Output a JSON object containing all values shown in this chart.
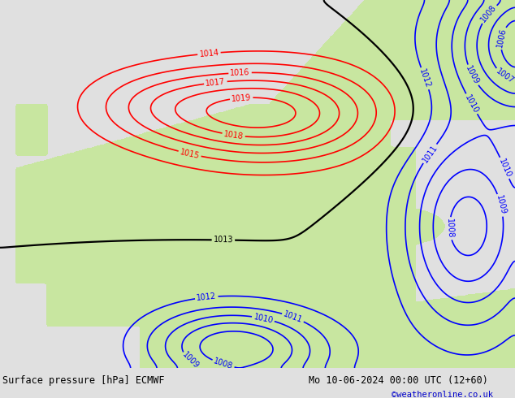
{
  "title_left": "Surface pressure [hPa] ECMWF",
  "title_right": "Mo 10-06-2024 00:00 UTC (12+60)",
  "copyright": "©weatheronline.co.uk",
  "bg_color": "#e0e0e0",
  "land_color": "#c8e6a0",
  "figsize": [
    6.34,
    4.9
  ],
  "dpi": 100,
  "footer_color": "#c0c0c0",
  "text_color": "#000000",
  "copyright_color": "#0000cc"
}
